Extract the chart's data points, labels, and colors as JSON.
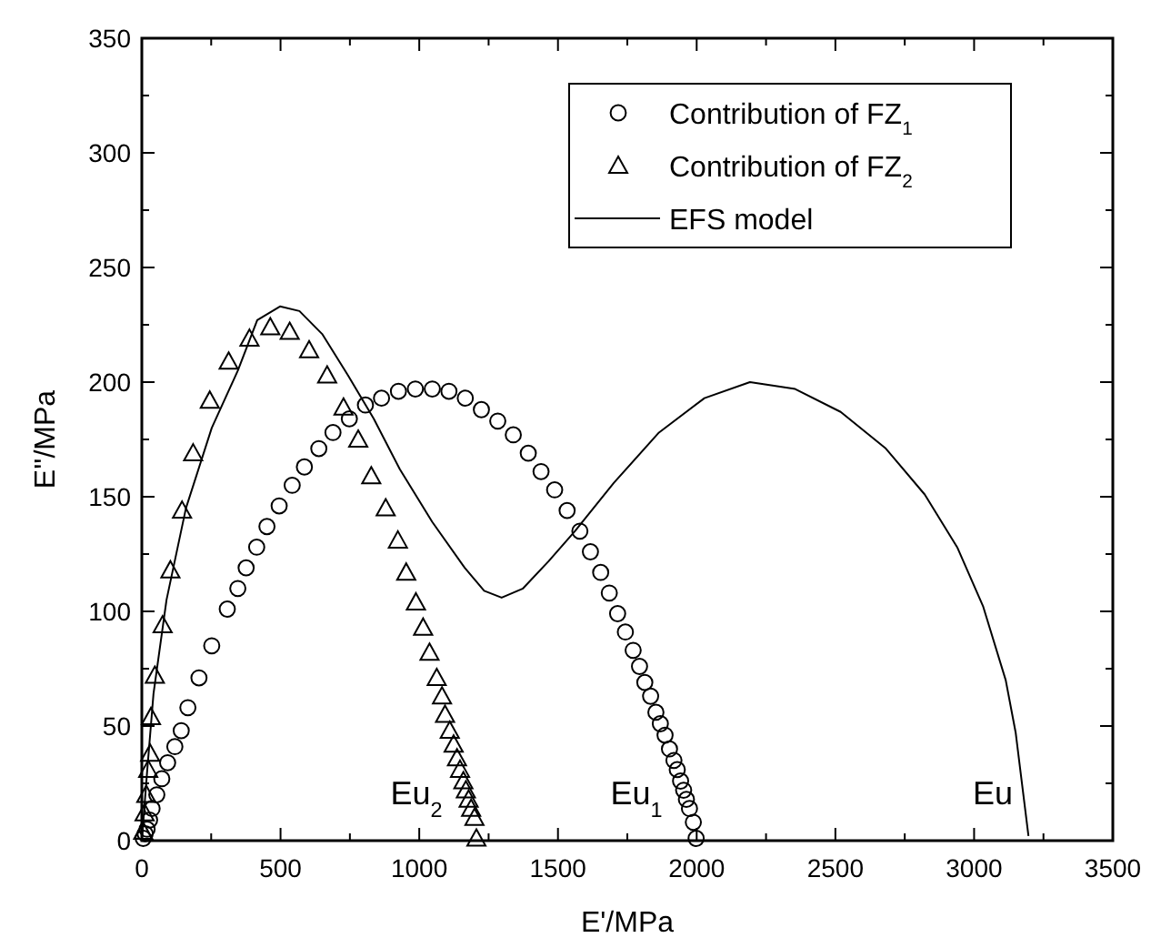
{
  "chart_data": {
    "type": "scatter",
    "xlabel": "E'/MPa",
    "ylabel": "E''/MPa",
    "xlim": [
      0,
      3500
    ],
    "ylim": [
      0,
      350
    ],
    "xticks": [
      0,
      {
        "value": 250,
        "label": null
      },
      500,
      {
        "value": 750,
        "label": null
      },
      1000,
      {
        "value": 1250,
        "label": null
      },
      1500,
      {
        "value": 1750,
        "label": null
      },
      2000,
      {
        "value": 2250,
        "label": null
      },
      2500,
      {
        "value": 2750,
        "label": null
      },
      3000,
      {
        "value": 3250,
        "label": null
      },
      3500
    ],
    "yticks": [
      0,
      {
        "value": 25,
        "label": null
      },
      50,
      {
        "value": 75,
        "label": null
      },
      100,
      {
        "value": 125,
        "label": null
      },
      150,
      {
        "value": 175,
        "label": null
      },
      200,
      {
        "value": 225,
        "label": null
      },
      250,
      {
        "value": 275,
        "label": null
      },
      300,
      {
        "value": 325,
        "label": null
      },
      350
    ],
    "legend": "top right",
    "grid": false,
    "series": [
      {
        "name": "Contribution of FZ$_{1}$",
        "type": "scatter",
        "marker": "circle",
        "color": "#000000",
        "x": [
          5,
          12,
          19,
          28,
          37,
          54,
          72,
          93,
          119,
          142,
          166,
          206,
          252,
          308,
          346,
          376,
          414,
          451,
          495,
          542,
          586,
          638,
          689,
          748,
          806,
          864,
          925,
          986,
          1047,
          1107,
          1166,
          1224,
          1283,
          1339,
          1393,
          1439,
          1488,
          1533,
          1579,
          1617,
          1654,
          1685,
          1715,
          1743,
          1771,
          1794,
          1813,
          1834,
          1853,
          1869,
          1886,
          1902,
          1918,
          1930,
          1942,
          1953,
          1963,
          1974,
          1988,
          1998
        ],
        "values": [
          1,
          3,
          5,
          9,
          14,
          20,
          27,
          34,
          41,
          48,
          58,
          71,
          85,
          101,
          110,
          119,
          128,
          137,
          146,
          155,
          163,
          171,
          178,
          184,
          190,
          193,
          196,
          197,
          197,
          196,
          193,
          188,
          183,
          177,
          169,
          161,
          153,
          144,
          135,
          126,
          117,
          108,
          99,
          91,
          83,
          76,
          69,
          63,
          56,
          51,
          46,
          40,
          35,
          31,
          26,
          22,
          18,
          14,
          8,
          1
        ]
      },
      {
        "name": "Contribution of FZ$_{2}$",
        "type": "scatter",
        "marker": "triangle",
        "color": "#000000",
        "x": [
          5,
          10,
          16,
          23,
          30,
          33,
          47,
          75,
          103,
          145,
          185,
          245,
          313,
          388,
          463,
          533,
          603,
          668,
          727,
          780,
          827,
          879,
          923,
          953,
          988,
          1014,
          1037,
          1063,
          1082,
          1093,
          1110,
          1124,
          1136,
          1147,
          1159,
          1168,
          1178,
          1187,
          1199,
          1206
        ],
        "values": [
          4,
          12,
          20,
          31,
          38,
          54,
          72,
          94,
          118,
          144,
          169,
          192,
          209,
          219,
          224,
          222,
          214,
          203,
          189,
          175,
          159,
          145,
          131,
          117,
          104,
          93,
          82,
          71,
          63,
          55,
          48,
          42,
          36,
          31,
          26,
          22,
          18,
          14,
          10,
          1
        ]
      },
      {
        "name": "EFS model",
        "type": "line",
        "marker": "none",
        "line_style": "solid",
        "color": "#000000",
        "x": [
          0,
          19,
          42,
          89,
          159,
          252,
          346,
          416,
          498,
          568,
          650,
          743,
          836,
          930,
          1047,
          1164,
          1234,
          1297,
          1374,
          1467,
          1561,
          1701,
          1864,
          2028,
          2192,
          2355,
          2519,
          2682,
          2822,
          2939,
          3033,
          3114,
          3150,
          3196
        ],
        "values": [
          0,
          30,
          64,
          105,
          145,
          180,
          205,
          227,
          233,
          231,
          221,
          203,
          184,
          162,
          139,
          119,
          109,
          106,
          110,
          122,
          135,
          156,
          178,
          193,
          200,
          197,
          187,
          171,
          151,
          128,
          102,
          70,
          47,
          2
        ]
      }
    ],
    "annotations": [
      "Eu$_{2}$",
      "Eu$_{1}$",
      "Eu"
    ]
  }
}
